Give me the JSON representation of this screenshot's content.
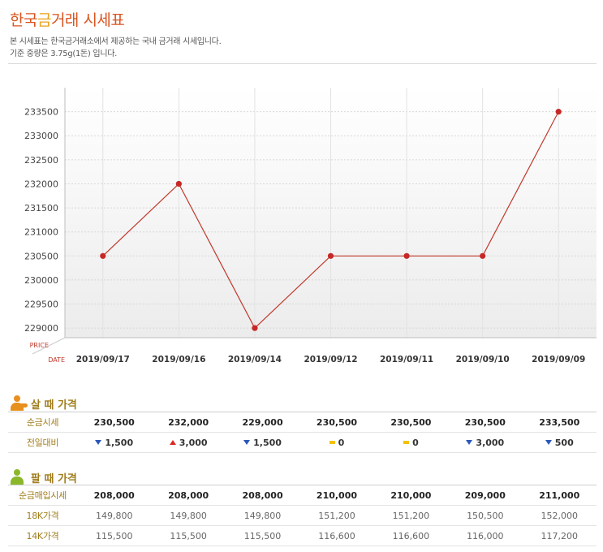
{
  "header": {
    "title_part1": "한국",
    "title_part2": "금",
    "title_part3": "거래 시세표",
    "desc1": "본 시세표는 한국금거래소에서 제공하는 국내 금거래 시세입니다.",
    "desc2": "기준 중량은 3.75g(1돈) 입니다."
  },
  "colors": {
    "line": "#c0392b",
    "point": "#c62828",
    "accent": "#d9531e",
    "gold_label": "#a07d1c"
  },
  "chart_data": {
    "type": "line",
    "x_axis_label": "DATE",
    "y_axis_label": "PRICE",
    "categories": [
      "2019/09/17",
      "2019/09/16",
      "2019/09/14",
      "2019/09/12",
      "2019/09/11",
      "2019/09/10",
      "2019/09/09"
    ],
    "series": [
      {
        "values": [
          230500,
          232000,
          229000,
          230500,
          230500,
          230500,
          233500
        ]
      }
    ],
    "yticks": [
      229000,
      229500,
      230000,
      230500,
      231000,
      231500,
      232000,
      232500,
      233000,
      233500
    ],
    "ylim": [
      228800,
      234000
    ],
    "grid": true
  },
  "buy": {
    "heading": "살 때 가격",
    "rows": [
      {
        "label": "순금시세",
        "values": [
          "230,500",
          "232,000",
          "229,000",
          "230,500",
          "230,500",
          "230,500",
          "233,500"
        ]
      }
    ],
    "change": {
      "label": "전일대비",
      "items": [
        {
          "dir": "down",
          "value": "1,500"
        },
        {
          "dir": "up",
          "value": "3,000"
        },
        {
          "dir": "down",
          "value": "1,500"
        },
        {
          "dir": "flat",
          "value": "0"
        },
        {
          "dir": "flat",
          "value": "0"
        },
        {
          "dir": "down",
          "value": "3,000"
        },
        {
          "dir": "down",
          "value": "500"
        }
      ]
    }
  },
  "sell": {
    "heading": "팔 때 가격",
    "rows": [
      {
        "label": "순금매입시세",
        "values": [
          "208,000",
          "208,000",
          "208,000",
          "210,000",
          "210,000",
          "209,000",
          "211,000"
        ]
      },
      {
        "label": "18K가격",
        "values": [
          "149,800",
          "149,800",
          "149,800",
          "151,200",
          "151,200",
          "150,500",
          "152,000"
        ]
      },
      {
        "label": "14K가격",
        "values": [
          "115,500",
          "115,500",
          "115,500",
          "116,600",
          "116,600",
          "116,000",
          "117,200"
        ]
      }
    ]
  }
}
